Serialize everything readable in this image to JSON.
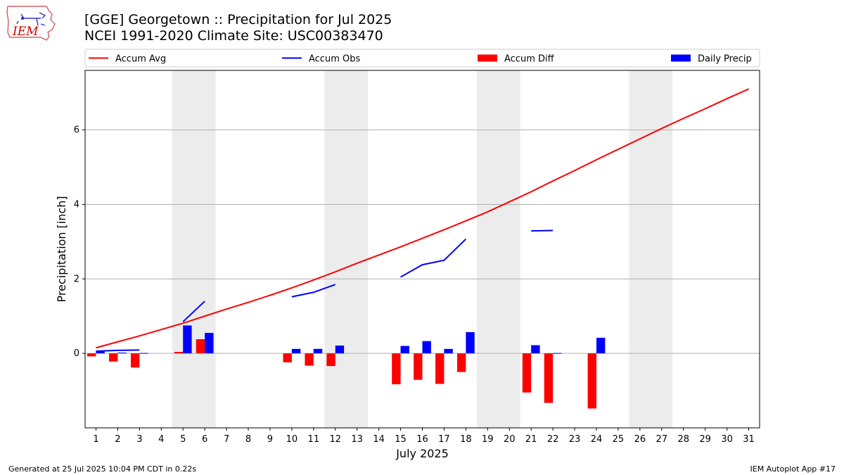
{
  "header": {
    "title_line1": "[GGE] Georgetown :: Precipitation for Jul 2025",
    "title_line2": "NCEI 1991-2020 Climate Site: USC00383470"
  },
  "logo": {
    "text": "IEM",
    "color": "#cc0000"
  },
  "footer": {
    "left": "Generated at 25 Jul 2025 10:04 PM CDT in 0.22s",
    "right": "IEM Autoplot App #17"
  },
  "colors": {
    "accum_avg": "#ff0000",
    "accum_obs": "#0000ff",
    "accum_diff": "#ff0000",
    "daily_precip": "#0000ff",
    "weekend_band": "#ececec",
    "grid": "#b0b0b0"
  },
  "chart_data": {
    "type": "bar",
    "xlabel": "July 2025",
    "ylabel": "Precipitation [inch]",
    "xlim": [
      0.5,
      31.5
    ],
    "ylim": [
      -2.0,
      7.6
    ],
    "yticks": [
      0,
      2,
      4,
      6
    ],
    "grid": "y",
    "legend_position": "top, above plot",
    "legend": [
      "Accum Avg",
      "Accum Obs",
      "Accum Diff",
      "Daily Precip"
    ],
    "categories": [
      "1",
      "2",
      "3",
      "4",
      "5",
      "6",
      "7",
      "8",
      "9",
      "10",
      "11",
      "12",
      "13",
      "14",
      "15",
      "16",
      "17",
      "18",
      "19",
      "20",
      "21",
      "22",
      "23",
      "24",
      "25",
      "26",
      "27",
      "28",
      "29",
      "30",
      "31"
    ],
    "shaded_day_ranges": [
      [
        5,
        6
      ],
      [
        12,
        13
      ],
      [
        19,
        20
      ],
      [
        26,
        27
      ]
    ],
    "series": [
      {
        "name": "Accum Avg",
        "kind": "line",
        "x": [
          1,
          2,
          3,
          4,
          5,
          6,
          7,
          8,
          9,
          10,
          11,
          12,
          13,
          14,
          15,
          16,
          17,
          18,
          19,
          20,
          21,
          22,
          23,
          24,
          25,
          26,
          27,
          28,
          29,
          30,
          31
        ],
        "values": [
          0.15,
          0.31,
          0.47,
          0.64,
          0.81,
          1.0,
          1.19,
          1.37,
          1.56,
          1.76,
          1.97,
          2.19,
          2.42,
          2.64,
          2.86,
          3.09,
          3.32,
          3.56,
          3.8,
          4.07,
          4.34,
          4.63,
          4.91,
          5.2,
          5.48,
          5.76,
          6.04,
          6.31,
          6.57,
          6.84,
          7.1
        ]
      },
      {
        "name": "Accum Obs",
        "kind": "line",
        "segments": [
          {
            "x": [
              1,
              2,
              3
            ],
            "values": [
              0.06,
              0.08,
              0.09
            ]
          },
          {
            "x": [
              5,
              6
            ],
            "values": [
              0.85,
              1.4
            ]
          },
          {
            "x": [
              10,
              11,
              12
            ],
            "values": [
              1.52,
              1.64,
              1.85
            ]
          },
          {
            "x": [
              15,
              16,
              17,
              18
            ],
            "values": [
              2.05,
              2.38,
              2.5,
              3.07
            ]
          },
          {
            "x": [
              21,
              22
            ],
            "values": [
              3.29,
              3.3
            ]
          }
        ]
      },
      {
        "name": "Accum Diff",
        "kind": "bar",
        "x": [
          1,
          2,
          3,
          5,
          6,
          10,
          11,
          12,
          15,
          16,
          17,
          18,
          21,
          22,
          24
        ],
        "values": [
          -0.08,
          -0.22,
          -0.38,
          0.04,
          0.38,
          -0.24,
          -0.33,
          -0.34,
          -0.83,
          -0.71,
          -0.82,
          -0.5,
          -1.05,
          -1.33,
          -1.48
        ]
      },
      {
        "name": "Daily Precip",
        "kind": "bar",
        "x": [
          1,
          2,
          3,
          5,
          6,
          10,
          11,
          12,
          15,
          16,
          17,
          18,
          21,
          22,
          24
        ],
        "values": [
          0.06,
          0.02,
          0.01,
          0.75,
          0.55,
          0.12,
          0.12,
          0.21,
          0.2,
          0.33,
          0.12,
          0.57,
          0.22,
          0.01,
          0.42
        ]
      }
    ]
  }
}
